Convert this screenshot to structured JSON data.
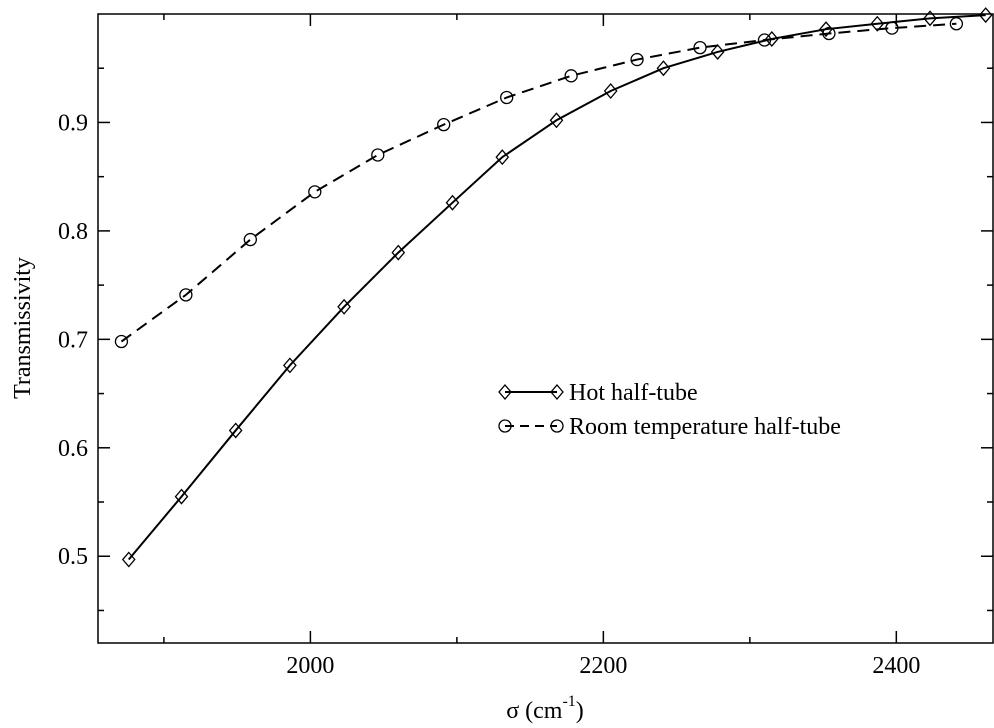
{
  "chart_data": {
    "type": "line",
    "x_label": {
      "text": "σ (cm",
      "sup": "-1",
      "end": ")"
    },
    "y_label": "Transmissivity",
    "xlim": [
      1855,
      2466
    ],
    "ylim": [
      0.42,
      1.0
    ],
    "xticks": [
      2000,
      2200,
      2400
    ],
    "xminorticks": [
      1900,
      2100,
      2300
    ],
    "yticks": [
      0.5,
      0.6,
      0.7,
      0.8,
      0.9
    ],
    "yminorticks": [
      0.45,
      0.55,
      0.65,
      0.75,
      0.85,
      0.95
    ],
    "legend": "center-right",
    "series": [
      {
        "name": "Hot half-tube",
        "color": "#000000",
        "dash": "solid",
        "marker": "diamond",
        "x": [
          1876,
          1912,
          1949,
          1986,
          2023,
          2060,
          2097,
          2131,
          2168,
          2205,
          2241,
          2278,
          2315,
          2352,
          2387,
          2423,
          2461
        ],
        "values": [
          0.497,
          0.555,
          0.616,
          0.676,
          0.73,
          0.78,
          0.826,
          0.868,
          0.902,
          0.929,
          0.95,
          0.965,
          0.977,
          0.986,
          0.991,
          0.996,
          0.999
        ]
      },
      {
        "name": "Room temperature half-tube",
        "color": "#000000",
        "dash": "dashed",
        "marker": "circle",
        "x": [
          1871,
          1915,
          1959,
          2003,
          2046,
          2091,
          2134,
          2178,
          2223,
          2266,
          2310,
          2354,
          2397,
          2441
        ],
        "values": [
          0.698,
          0.741,
          0.792,
          0.836,
          0.87,
          0.898,
          0.923,
          0.943,
          0.958,
          0.969,
          0.976,
          0.982,
          0.987,
          0.991
        ]
      }
    ]
  }
}
